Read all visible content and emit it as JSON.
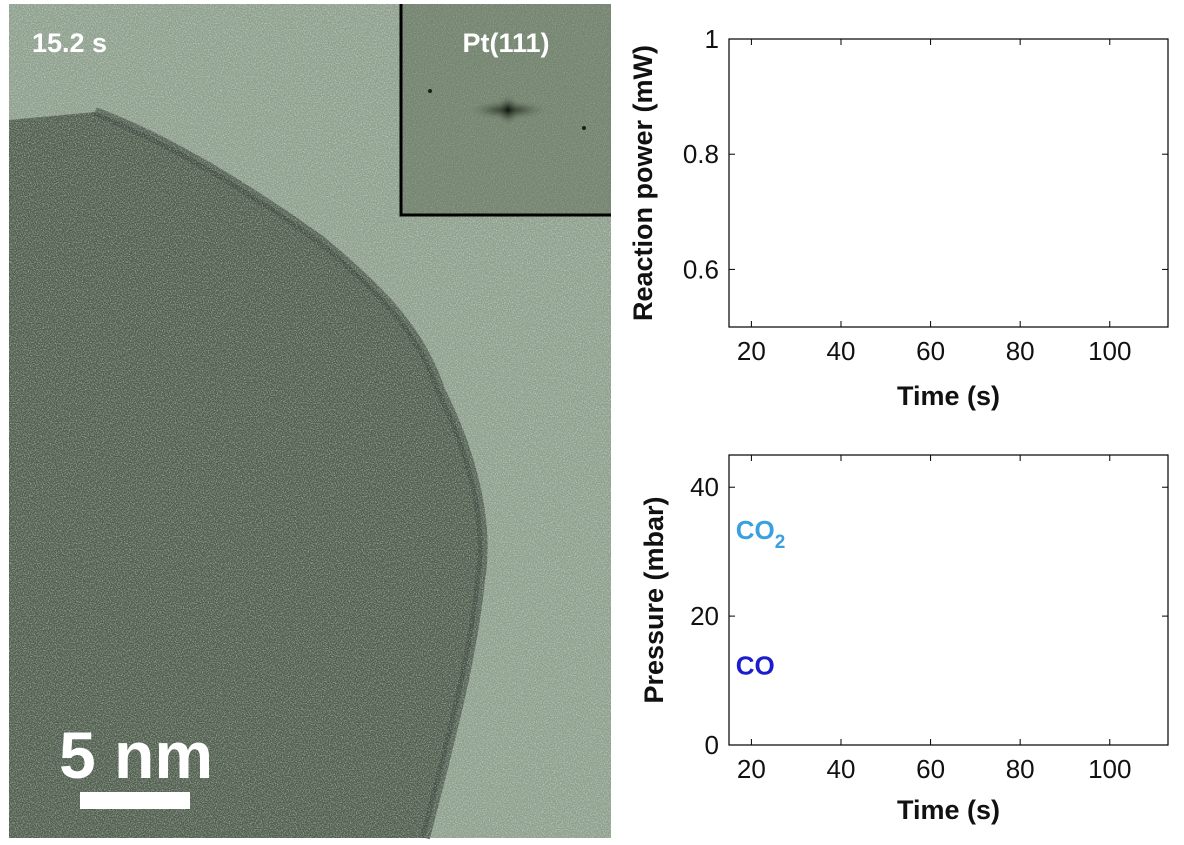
{
  "micrograph": {
    "timestamp": "15.2 s",
    "inset_label": "Pt(111)",
    "scale_bar_label": "5 nm"
  },
  "chart_data": [
    {
      "type": "line",
      "title": "",
      "xlabel": "Time (s)",
      "ylabel": "Reaction power (mW)",
      "xlim": [
        15,
        113
      ],
      "ylim": [
        0.5,
        1.0
      ],
      "xticks": [
        20,
        40,
        60,
        80,
        100
      ],
      "yticks": [
        0.6,
        0.8,
        1.0
      ],
      "ytick_labels": [
        "0.6",
        "0.8",
        "1"
      ],
      "grid": false,
      "series": []
    },
    {
      "type": "line",
      "title": "",
      "xlabel": "Time (s)",
      "ylabel": "Pressure (mbar)",
      "xlim": [
        15,
        113
      ],
      "ylim": [
        0,
        45
      ],
      "xticks": [
        20,
        40,
        60,
        80,
        100
      ],
      "yticks": [
        0,
        20,
        40
      ],
      "ytick_labels": [
        "0",
        "20",
        "40"
      ],
      "grid": false,
      "annotations": [
        {
          "text": "CO",
          "subscript": "2",
          "x": 16.5,
          "y": 33.5,
          "color": "#3aa0e0"
        },
        {
          "text": "CO",
          "subscript": "",
          "x": 16.5,
          "y": 12.5,
          "color": "#1c1ccf"
        }
      ],
      "series": []
    }
  ]
}
